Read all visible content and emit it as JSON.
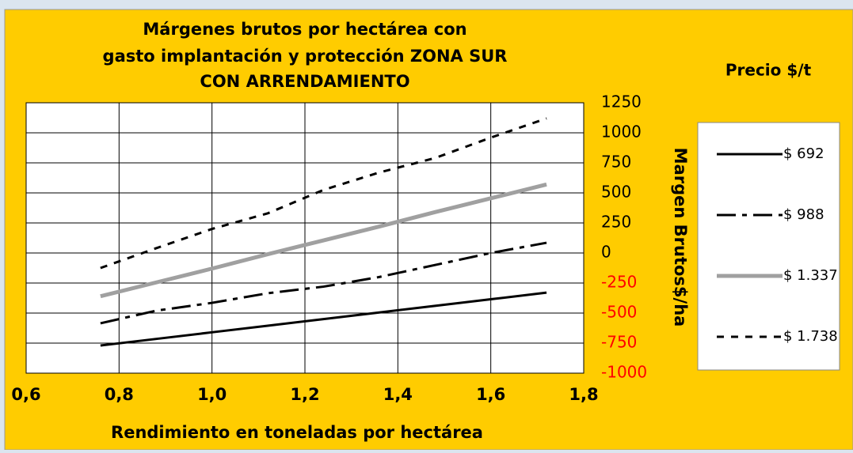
{
  "chart_data": {
    "type": "line",
    "title": [
      "Márgenes brutos por hectárea con",
      "gasto implantación y protección ZONA SUR",
      "CON ARRENDAMIENTO"
    ],
    "x_label": "Rendimiento en toneladas por hectárea",
    "y_label": "Margen Brutos$/ha",
    "legend_title": "Precio $/t",
    "x": [
      0.76,
      0.88,
      1.0,
      1.12,
      1.24,
      1.36,
      1.48,
      1.6,
      1.72
    ],
    "series": [
      {
        "name": "$ 692",
        "color": "#000000",
        "style": "solid",
        "values": [
          -770,
          -715,
          -660,
          -605,
          -550,
          -495,
          -440,
          -385,
          -330
        ]
      },
      {
        "name": "$ 988",
        "color": "#000000",
        "style": "dash-dot",
        "values": [
          -585,
          -480,
          -415,
          -335,
          -280,
          -200,
          -100,
          0,
          85
        ]
      },
      {
        "name": "$ 1.337",
        "color": "#a0a0a0",
        "style": "thick",
        "values": [
          -360,
          -245,
          -130,
          -10,
          105,
          220,
          340,
          455,
          570
        ]
      },
      {
        "name": "$ 1.738",
        "color": "#000000",
        "style": "dash",
        "values": [
          -125,
          40,
          200,
          330,
          525,
          670,
          790,
          960,
          1120
        ]
      }
    ],
    "xlim": [
      0.6,
      1.8
    ],
    "xticks": [
      {
        "value": 0.6,
        "label": "0,6"
      },
      {
        "value": 0.8,
        "label": "0,8"
      },
      {
        "value": 1.0,
        "label": "1,0"
      },
      {
        "value": 1.2,
        "label": "1,2"
      },
      {
        "value": 1.4,
        "label": "1,4"
      },
      {
        "value": 1.6,
        "label": "1,6"
      },
      {
        "value": 1.8,
        "label": "1,8"
      }
    ],
    "ylim": [
      -1000,
      1250
    ],
    "yticks": [
      -1000,
      -750,
      -500,
      -250,
      0,
      250,
      500,
      750,
      1000,
      1250
    ],
    "negative_tick_color": "#ff0000",
    "grid": true,
    "legend": "right"
  }
}
